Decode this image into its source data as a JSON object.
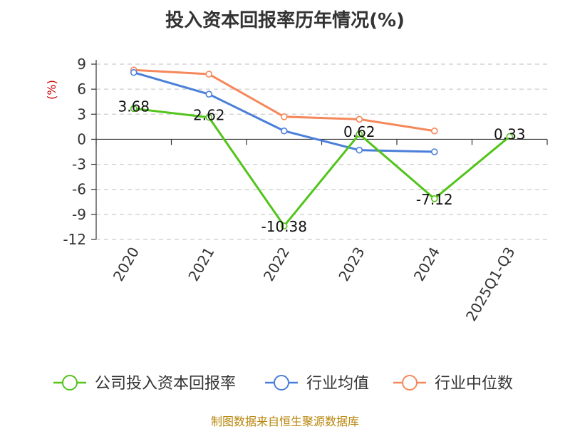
{
  "chart_data": {
    "type": "line",
    "title": "投入资本回报率历年情况(%)",
    "ylabel": "(%)",
    "xlabel": "",
    "categories": [
      "2020",
      "2021",
      "2022",
      "2023",
      "2024",
      "2025Q1-Q3"
    ],
    "ylim": [
      -12,
      9
    ],
    "yticks": [
      9,
      6,
      3,
      0,
      -3,
      -6,
      -9,
      -12
    ],
    "grid": true,
    "legend_position": "bottom",
    "series": [
      {
        "name": "公司投入资本回报率",
        "color": "#52c41a",
        "values": [
          3.68,
          2.62,
          -10.38,
          0.62,
          -7.12,
          0.33
        ],
        "labels": [
          "3.68",
          "2.62",
          "-10.38",
          "0.62",
          "-7.12",
          "0.33"
        ]
      },
      {
        "name": "行业均值",
        "color": "#4a7fd9",
        "values": [
          8.0,
          5.4,
          1.0,
          -1.3,
          -1.5,
          null
        ],
        "labels": []
      },
      {
        "name": "行业中位数",
        "color": "#f5875a",
        "values": [
          8.3,
          7.8,
          2.7,
          2.4,
          1.0,
          null
        ],
        "labels": []
      }
    ]
  },
  "source": "制图数据来自恒生聚源数据库"
}
